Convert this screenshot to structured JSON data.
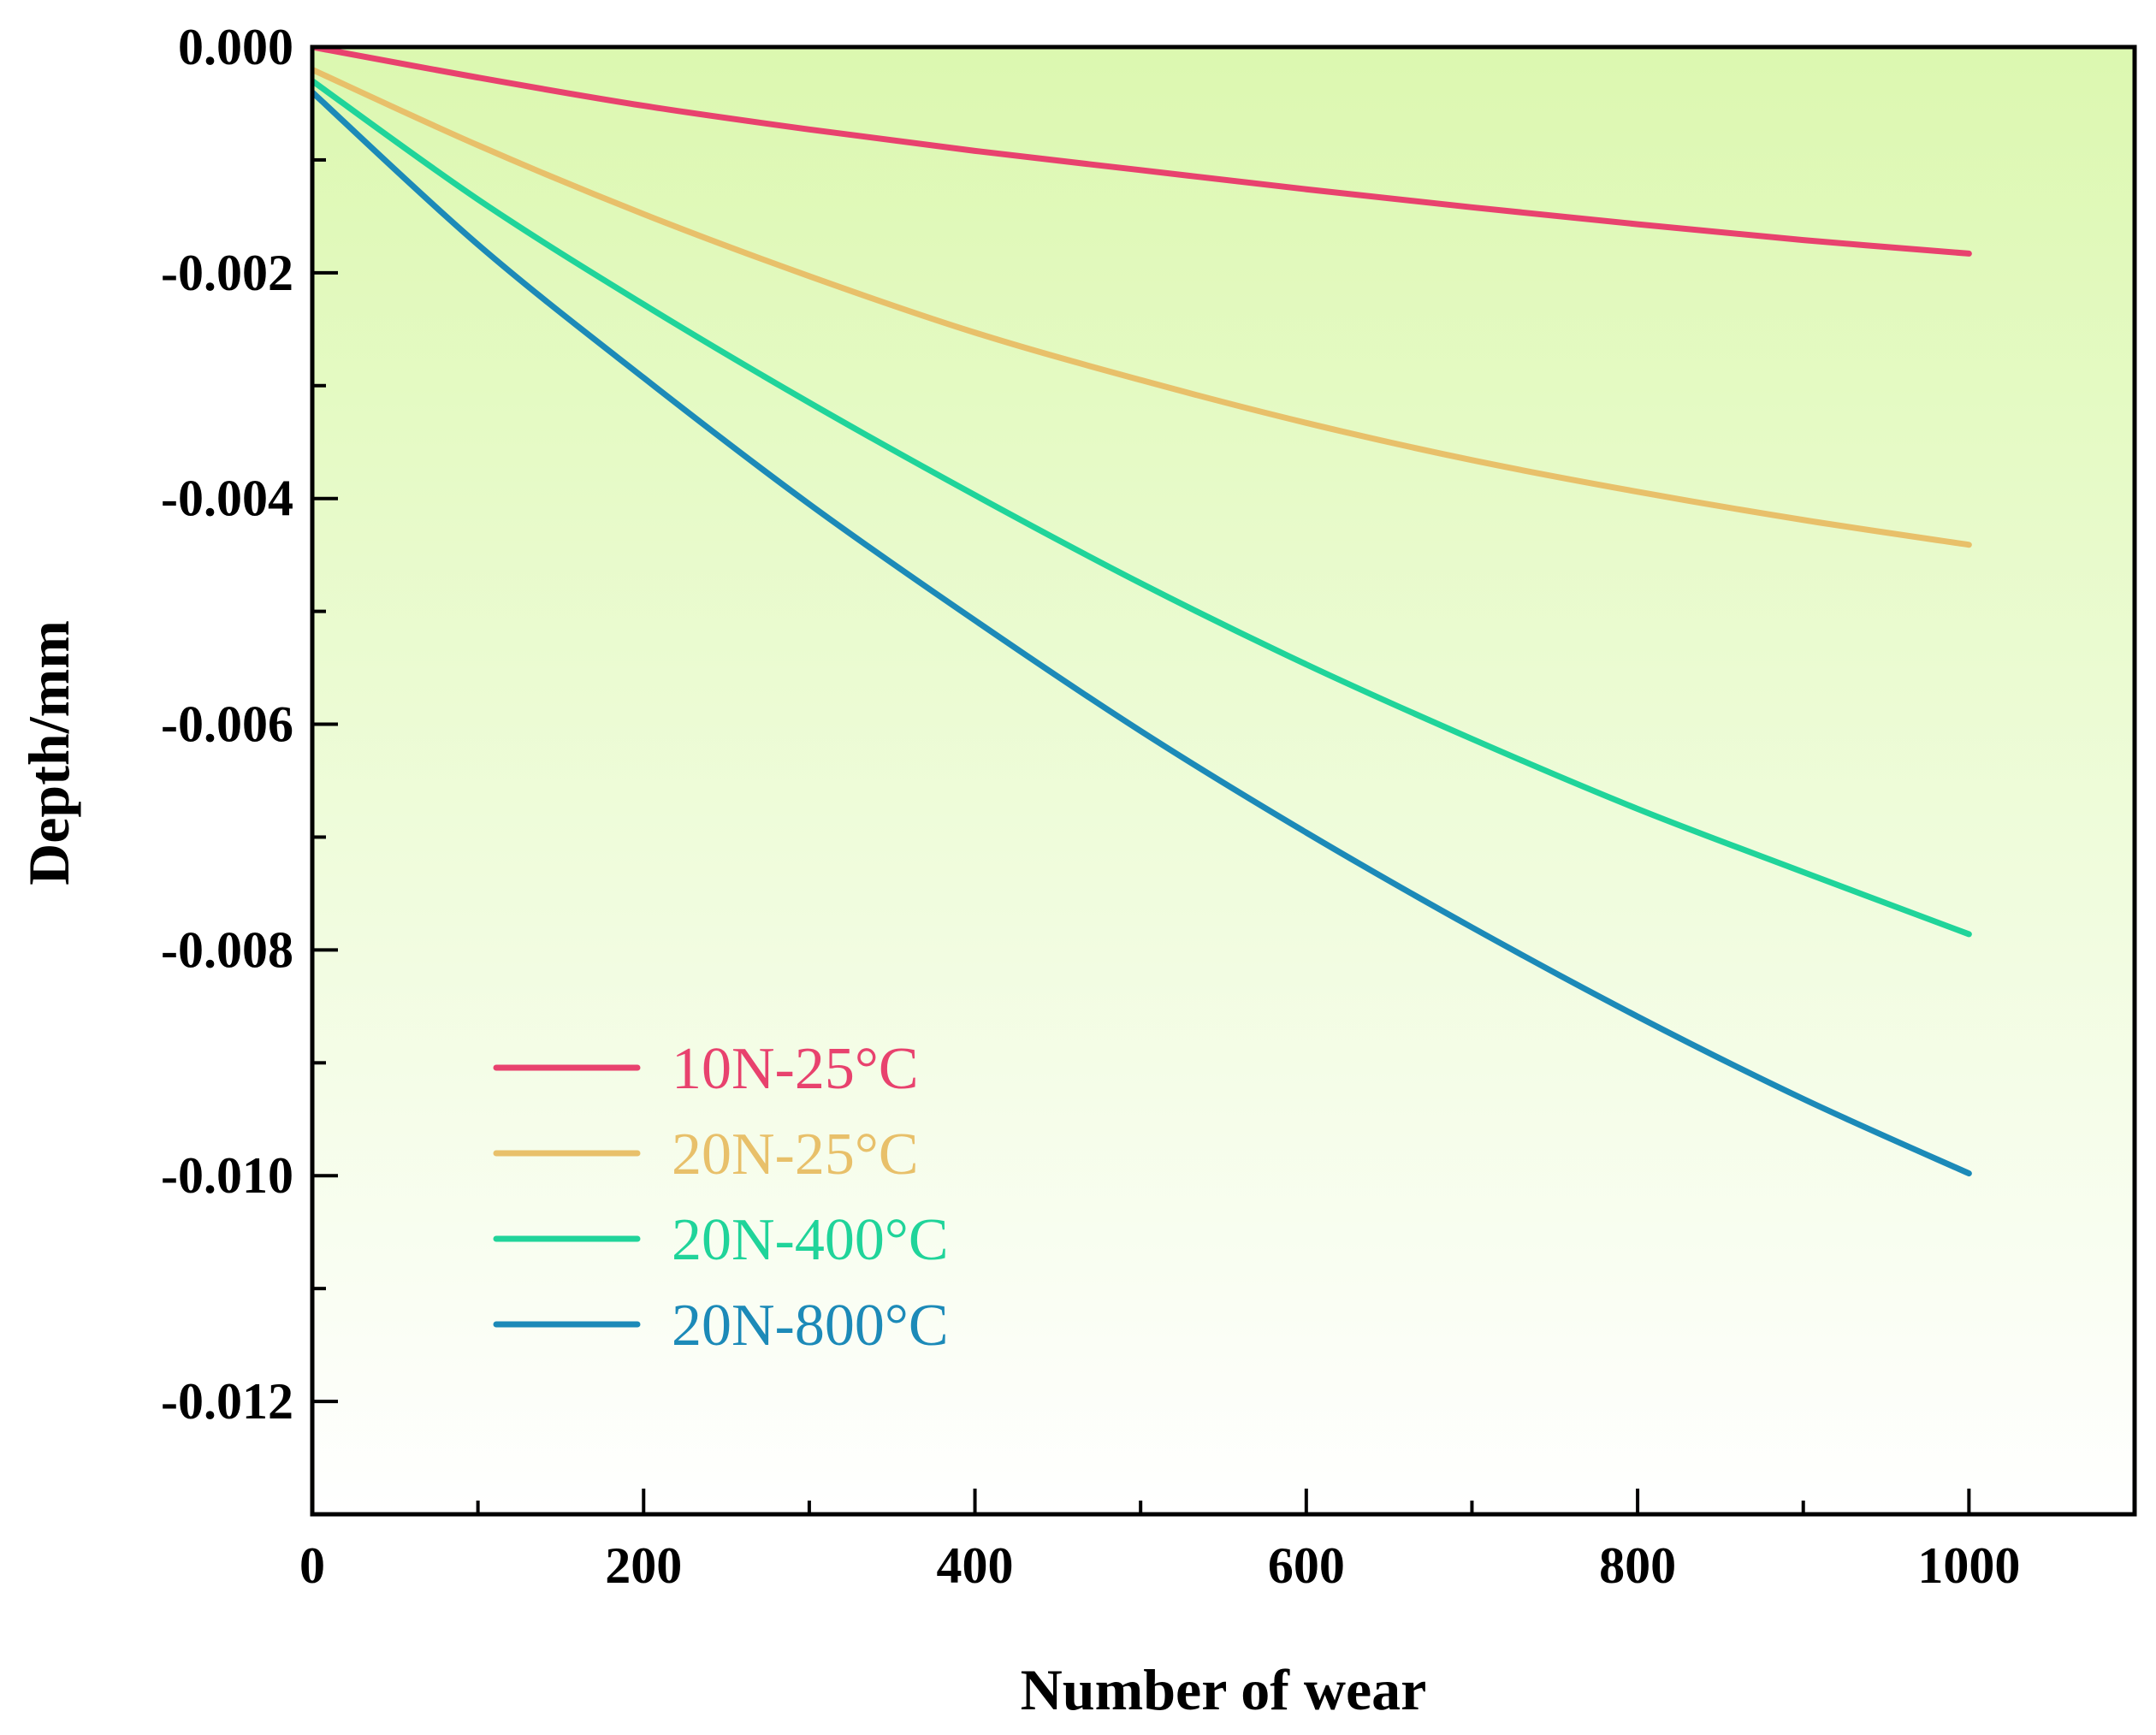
{
  "chart_data": {
    "type": "line",
    "xlabel": "Number of wear",
    "ylabel": "Depth/mm",
    "xlim": [
      0,
      1100
    ],
    "ylim": [
      -0.013,
      0.0
    ],
    "xticks": [
      0,
      200,
      400,
      600,
      800,
      1000
    ],
    "xtick_labels": [
      "0",
      "200",
      "400",
      "600",
      "800",
      "1000"
    ],
    "yticks": [
      0.0,
      -0.002,
      -0.004,
      -0.006,
      -0.008,
      -0.01,
      -0.012
    ],
    "ytick_labels": [
      "0.000",
      "-0.002",
      "-0.004",
      "-0.006",
      "-0.008",
      "-0.010",
      "-0.012"
    ],
    "legend_position": "lower-left",
    "background": {
      "top_color": "#dcf8b0",
      "bottom_color": "#ffffff"
    },
    "series": [
      {
        "name": "10N-25°C",
        "color": "#e8426e",
        "x": [
          0,
          100,
          200,
          300,
          400,
          500,
          600,
          700,
          800,
          900,
          1000
        ],
        "y": [
          0.0,
          -0.00027,
          -0.00052,
          -0.00073,
          -0.00092,
          -0.00109,
          -0.00126,
          -0.00142,
          -0.00157,
          -0.00171,
          -0.00183
        ]
      },
      {
        "name": "20N-25°C",
        "color": "#e8c06a",
        "x": [
          0,
          100,
          200,
          300,
          400,
          500,
          600,
          700,
          800,
          900,
          1000
        ],
        "y": [
          -0.0002,
          -0.00087,
          -0.00148,
          -0.00203,
          -0.00253,
          -0.00295,
          -0.00333,
          -0.00366,
          -0.00394,
          -0.00419,
          -0.00441
        ]
      },
      {
        "name": "20N-400°C",
        "color": "#20d49a",
        "x": [
          0,
          100,
          200,
          300,
          400,
          500,
          600,
          700,
          800,
          900,
          1000
        ],
        "y": [
          -0.0003,
          -0.00135,
          -0.00228,
          -0.00315,
          -0.00397,
          -0.00475,
          -0.00547,
          -0.00613,
          -0.00675,
          -0.00731,
          -0.00786
        ]
      },
      {
        "name": "20N-800°C",
        "color": "#1c8ab8",
        "x": [
          0,
          100,
          200,
          300,
          400,
          500,
          600,
          700,
          800,
          900,
          1000
        ],
        "y": [
          -0.0004,
          -0.00175,
          -0.00293,
          -0.00405,
          -0.00508,
          -0.00606,
          -0.00696,
          -0.0078,
          -0.00859,
          -0.00932,
          -0.00998
        ]
      }
    ]
  }
}
